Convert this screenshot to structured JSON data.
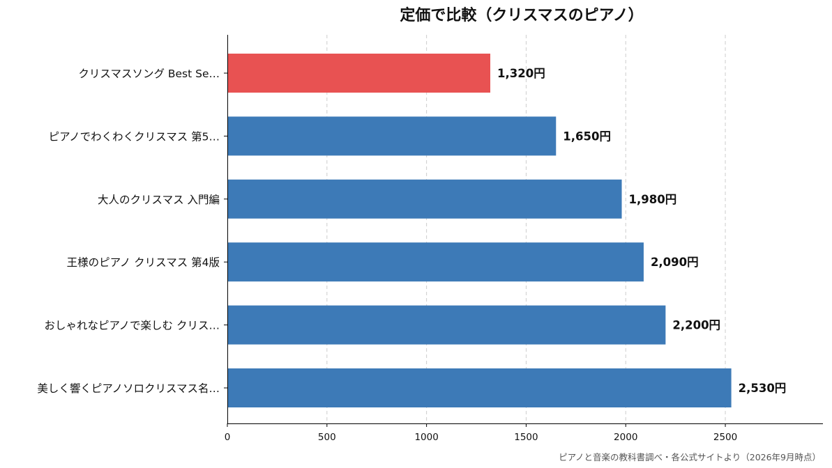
{
  "chart_data": {
    "type": "bar",
    "orientation": "horizontal",
    "title": "定価で比較（クリスマスのピアノ）",
    "xlabel": "",
    "ylabel": "",
    "categories": [
      "クリスマスソング Best Se…",
      "ピアノでわくわくクリスマス 第5…",
      "大人のクリスマス 入門編",
      "王様のピアノ クリスマス 第4版",
      "おしゃれなピアノで楽しむ クリス…",
      "美しく響くピアノソロクリスマス名…"
    ],
    "values": [
      1320,
      1650,
      1980,
      2090,
      2200,
      2530
    ],
    "value_labels": [
      "1,320円",
      "1,650円",
      "1,980円",
      "2,090円",
      "2,200円",
      "2,530円"
    ],
    "bar_colors": [
      "#e85252",
      "#3d7ab7",
      "#3d7ab7",
      "#3d7ab7",
      "#3d7ab7",
      "#3d7ab7"
    ],
    "highlight_index": 0,
    "xlim": [
      0,
      2990
    ],
    "xticks": [
      0,
      500,
      1000,
      1500,
      2000,
      2500
    ],
    "grid": "vertical-dashed"
  },
  "source_note": "ピアノと音楽の教科書調べ・各公式サイトより（2026年9月時点）"
}
